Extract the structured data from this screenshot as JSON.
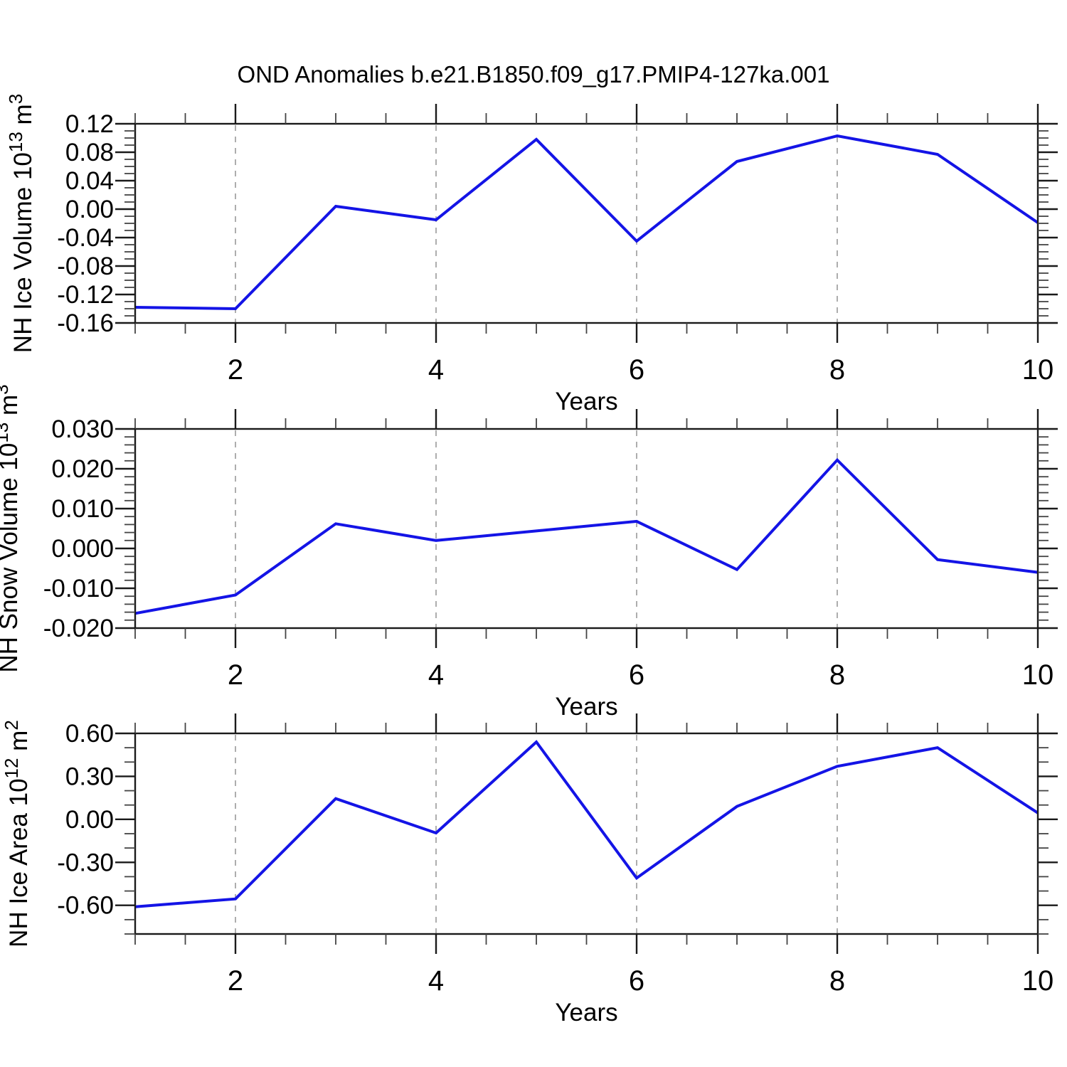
{
  "title": "OND Anomalies b.e21.B1850.f09_g17.PMIP4-127ka.001",
  "colors": {
    "line": "#1414e6",
    "grid": "#999999",
    "axis": "#1a1a1a",
    "minor_tick": "#444444",
    "background": "#ffffff"
  },
  "chart_data": [
    {
      "type": "line",
      "title": "",
      "xlabel": "Years",
      "ylabel": "NH Ice Volume 10^13 m^3",
      "ylabel_parts": [
        {
          "t": "NH Ice Volume 10"
        },
        {
          "t": "13",
          "sup": true
        },
        {
          "t": " m"
        },
        {
          "t": "3",
          "sup": true
        }
      ],
      "x": [
        1,
        2,
        3,
        4,
        5,
        6,
        7,
        8,
        9,
        10
      ],
      "values": [
        -0.138,
        -0.14,
        0.004,
        -0.015,
        0.098,
        -0.045,
        0.067,
        0.103,
        0.077,
        -0.019
      ],
      "xlim": [
        1,
        10
      ],
      "ylim": [
        -0.16,
        0.12
      ],
      "x_ticks": [
        {
          "v": 2,
          "label": "2"
        },
        {
          "v": 4,
          "label": "4"
        },
        {
          "v": 6,
          "label": "6"
        },
        {
          "v": 8,
          "label": "8"
        },
        {
          "v": 10,
          "label": "10"
        }
      ],
      "x_minor_step": 0.5,
      "y_ticks": [
        {
          "v": 0.12,
          "label": "0.12"
        },
        {
          "v": 0.08,
          "label": "0.08"
        },
        {
          "v": 0.04,
          "label": "0.04"
        },
        {
          "v": 0.0,
          "label": "0.00"
        },
        {
          "v": -0.04,
          "label": "-0.04"
        },
        {
          "v": -0.08,
          "label": "-0.08"
        },
        {
          "v": -0.12,
          "label": "-0.12"
        },
        {
          "v": -0.16,
          "label": "-0.16"
        }
      ],
      "y_minor_step": 0.01,
      "gridlines_x": [
        2,
        4,
        6,
        8
      ],
      "grid_style": "dashed",
      "legend": "none"
    },
    {
      "type": "line",
      "title": "",
      "xlabel": "Years",
      "ylabel": "NH Snow Volume 10^13 m^3",
      "ylabel_parts": [
        {
          "t": "NH Snow Volume 10"
        },
        {
          "t": "13",
          "sup": true
        },
        {
          "t": " m"
        },
        {
          "t": "3",
          "sup": true
        }
      ],
      "x": [
        1,
        2,
        3,
        4,
        5,
        6,
        7,
        8,
        9,
        10
      ],
      "values": [
        -0.0163,
        -0.0117,
        0.0062,
        0.002,
        0.0044,
        0.0068,
        -0.0053,
        0.0222,
        -0.0028,
        -0.006
      ],
      "xlim": [
        1,
        10
      ],
      "ylim": [
        -0.02,
        0.03
      ],
      "x_ticks": [
        {
          "v": 2,
          "label": "2"
        },
        {
          "v": 4,
          "label": "4"
        },
        {
          "v": 6,
          "label": "6"
        },
        {
          "v": 8,
          "label": "8"
        },
        {
          "v": 10,
          "label": "10"
        }
      ],
      "x_minor_step": 0.5,
      "y_ticks": [
        {
          "v": 0.03,
          "label": "0.030"
        },
        {
          "v": 0.02,
          "label": "0.020"
        },
        {
          "v": 0.01,
          "label": "0.010"
        },
        {
          "v": 0.0,
          "label": "0.000"
        },
        {
          "v": -0.01,
          "label": "-0.010"
        },
        {
          "v": -0.02,
          "label": "-0.020"
        }
      ],
      "y_minor_step": 0.002,
      "gridlines_x": [
        2,
        4,
        6,
        8
      ],
      "grid_style": "dashed",
      "legend": "none"
    },
    {
      "type": "line",
      "title": "",
      "xlabel": "Years",
      "ylabel": "NH Ice Area 10^12 m^2",
      "ylabel_parts": [
        {
          "t": "NH Ice Area 10"
        },
        {
          "t": "12",
          "sup": true
        },
        {
          "t": " m"
        },
        {
          "t": "2",
          "sup": true
        }
      ],
      "x": [
        1,
        2,
        3,
        4,
        5,
        6,
        7,
        8,
        9,
        10
      ],
      "values": [
        -0.61,
        -0.555,
        0.145,
        -0.095,
        0.54,
        -0.41,
        0.09,
        0.37,
        0.5,
        0.045
      ],
      "xlim": [
        1,
        10
      ],
      "ylim": [
        -0.8,
        0.6
      ],
      "x_ticks": [
        {
          "v": 2,
          "label": "2"
        },
        {
          "v": 4,
          "label": "4"
        },
        {
          "v": 6,
          "label": "6"
        },
        {
          "v": 8,
          "label": "8"
        },
        {
          "v": 10,
          "label": "10"
        }
      ],
      "x_minor_step": 0.5,
      "y_ticks": [
        {
          "v": 0.6,
          "label": "0.60"
        },
        {
          "v": 0.3,
          "label": "0.30"
        },
        {
          "v": 0.0,
          "label": "0.00"
        },
        {
          "v": -0.3,
          "label": "-0.30"
        },
        {
          "v": -0.6,
          "label": "-0.60"
        }
      ],
      "y_minor_step": 0.1,
      "gridlines_x": [
        2,
        4,
        6,
        8
      ],
      "grid_style": "dashed",
      "legend": "none"
    }
  ]
}
